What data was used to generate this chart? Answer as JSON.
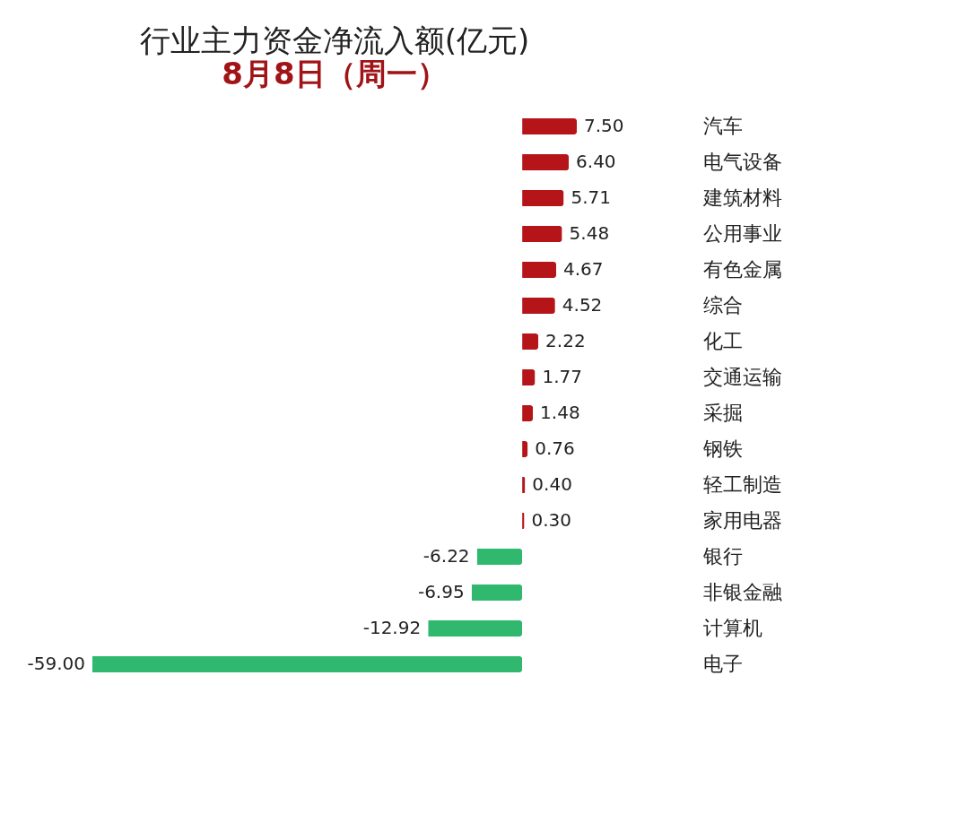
{
  "chart_data": {
    "type": "bar",
    "orientation": "horizontal",
    "title": "行业主力资金净流入额(亿元)",
    "subtitle": "8月8日（周一）",
    "categories": [
      "汽车",
      "电气设备",
      "建筑材料",
      "公用事业",
      "有色金属",
      "综合",
      "化工",
      "交通运输",
      "采掘",
      "钢铁",
      "轻工制造",
      "家用电器",
      "银行",
      "非银金融",
      "计算机",
      "电子"
    ],
    "values": [
      7.5,
      6.4,
      5.71,
      5.48,
      4.67,
      4.52,
      2.22,
      1.77,
      1.48,
      0.76,
      0.4,
      0.3,
      -6.22,
      -6.95,
      -12.92,
      -59.0
    ],
    "value_labels": [
      "7.50",
      "6.40",
      "5.71",
      "5.48",
      "4.67",
      "4.52",
      "2.22",
      "1.77",
      "1.48",
      "0.76",
      "0.40",
      "0.30",
      "-6.22",
      "-6.95",
      "-12.92",
      "-59.00"
    ],
    "colors": [
      "#b51419",
      "#b51419",
      "#b51419",
      "#b51419",
      "#b51419",
      "#b51419",
      "#b51419",
      "#b51419",
      "#b51419",
      "#b51419",
      "#b51419",
      "#b51419",
      "#2fb86e",
      "#2fb86e",
      "#2fb86e",
      "#2fb86e"
    ],
    "grid": false,
    "legend": false
  }
}
